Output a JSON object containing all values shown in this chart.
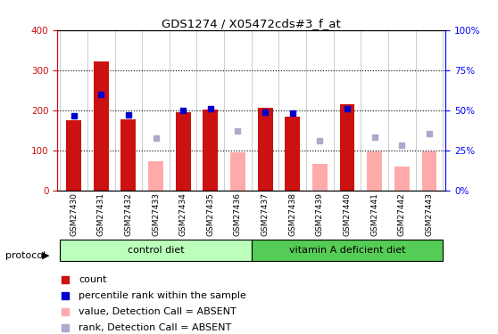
{
  "title": "GDS1274 / X05472cds#3_f_at",
  "samples": [
    "GSM27430",
    "GSM27431",
    "GSM27432",
    "GSM27433",
    "GSM27434",
    "GSM27435",
    "GSM27436",
    "GSM27437",
    "GSM27438",
    "GSM27439",
    "GSM27440",
    "GSM27441",
    "GSM27442",
    "GSM27443"
  ],
  "count_values": [
    175,
    322,
    177,
    0,
    194,
    202,
    0,
    207,
    185,
    0,
    215,
    0,
    0,
    0
  ],
  "percentile_values": [
    187,
    240,
    188,
    0,
    200,
    203,
    0,
    196,
    193,
    0,
    205,
    0,
    0,
    0
  ],
  "absent_value_vals": [
    0,
    0,
    0,
    72,
    0,
    0,
    95,
    0,
    0,
    67,
    0,
    97,
    60,
    98
  ],
  "absent_rank_vals": [
    0,
    0,
    0,
    130,
    0,
    0,
    148,
    0,
    0,
    123,
    0,
    133,
    112,
    142
  ],
  "ylim_left": [
    0,
    400
  ],
  "ylim_right": [
    0,
    100
  ],
  "yticks_left": [
    0,
    100,
    200,
    300,
    400
  ],
  "yticks_right": [
    0,
    25,
    50,
    75,
    100
  ],
  "ytick_labels_right": [
    "0%",
    "25%",
    "50%",
    "75%",
    "100%"
  ],
  "color_count": "#cc1111",
  "color_percentile": "#0000cc",
  "color_absent_value": "#ffaaaa",
  "color_absent_rank": "#aaaacc",
  "protocol_label": "protocol",
  "group1_label": "control diet",
  "group2_label": "vitamin A deficient diet",
  "group1_indices": [
    0,
    1,
    2,
    3,
    4,
    5,
    6
  ],
  "group2_indices": [
    7,
    8,
    9,
    10,
    11,
    12,
    13
  ],
  "group1_color": "#bbffbb",
  "group2_color": "#55cc55",
  "legend_items": [
    {
      "label": "count",
      "color": "#cc1111"
    },
    {
      "label": "percentile rank within the sample",
      "color": "#0000cc"
    },
    {
      "label": "value, Detection Call = ABSENT",
      "color": "#ffaaaa"
    },
    {
      "label": "rank, Detection Call = ABSENT",
      "color": "#aaaacc"
    }
  ]
}
